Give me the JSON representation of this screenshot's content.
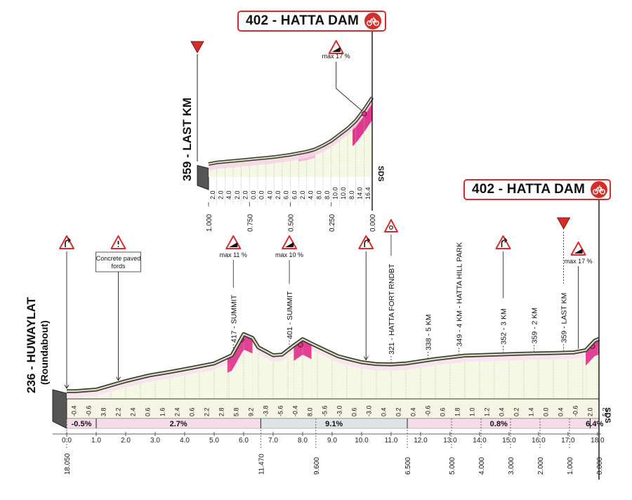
{
  "finish_label": "402 - HATTA DAM",
  "last_km_label": "359 - LAST KM",
  "start_label": "236 - HUWAYLAT",
  "start_sub_label": "(Roundabout)",
  "sds_label": "SDS",
  "colors": {
    "brand_red": "#d42e2b",
    "climb_pink": "#e0388f",
    "climb_light": "#f3b9da",
    "profile_fill": "#f6f8e6",
    "road_line": "#3a3a30",
    "gradient_bar_pink": "#f6dcea",
    "gradient_bar_grey": "#dde4e8"
  },
  "icons": [
    "roundabout-sign-icon",
    "warning-sign-icon",
    "climb-sign-icon",
    "last-km-flag-icon",
    "bicycle-icon"
  ],
  "chart_data": [
    {
      "type": "area",
      "name": "main-profile",
      "x": [
        0.0,
        0.3,
        1.0,
        2.0,
        2.8,
        3.5,
        4.3,
        5.0,
        5.6,
        6.0,
        6.3,
        6.5,
        7.0,
        7.3,
        7.7,
        8.0,
        8.3,
        8.7,
        9.2,
        9.6,
        10.0,
        10.5,
        11.0,
        11.5,
        12.5,
        13.5,
        14.5,
        15.5,
        16.5,
        17.2,
        17.6,
        17.9,
        18.05
      ],
      "y": [
        236,
        236,
        241,
        268,
        286,
        297,
        311,
        324,
        350,
        417,
        405,
        375,
        350,
        352,
        381,
        401,
        387,
        369,
        347,
        337,
        328,
        322,
        321,
        324,
        338,
        349,
        352,
        355,
        357,
        359,
        366,
        396,
        402
      ],
      "xlim": [
        0,
        18.05
      ],
      "ylim": [
        236,
        430
      ],
      "x_tick_labels": [
        "0.0",
        "1.0",
        "2.0",
        "3.0",
        "4.0",
        "5.0",
        "6.0",
        "7.0",
        "8.0",
        "9.0",
        "10.0",
        "11.0",
        "12.0",
        "13.0",
        "14.0",
        "15.0",
        "16.0",
        "17.0",
        "18.0"
      ],
      "x_tick_values": [
        0,
        1,
        2,
        3,
        4,
        5,
        6,
        7,
        8,
        9,
        10,
        11,
        12,
        13,
        14,
        15,
        16,
        17,
        18
      ],
      "km_to_go_labels": [
        {
          "x": 0.0,
          "label": "18.050"
        },
        {
          "x": 6.58,
          "label": "11.470"
        },
        {
          "x": 8.45,
          "label": "9.600"
        },
        {
          "x": 11.55,
          "label": "6.500"
        },
        {
          "x": 13.05,
          "label": "5.000"
        },
        {
          "x": 14.05,
          "label": "4.000"
        },
        {
          "x": 15.05,
          "label": "3.000"
        },
        {
          "x": 16.05,
          "label": "2.000"
        },
        {
          "x": 17.05,
          "label": "1.000"
        },
        {
          "x": 18.05,
          "label": "0.000"
        }
      ],
      "segment_gradients": [
        {
          "x": 0.0,
          "value": "-0.4"
        },
        {
          "x": 0.5,
          "value": "-0.6"
        },
        {
          "x": 1.0,
          "value": "3.8"
        },
        {
          "x": 1.5,
          "value": "2.2"
        },
        {
          "x": 2.0,
          "value": "2.4"
        },
        {
          "x": 2.5,
          "value": "0.6"
        },
        {
          "x": 3.0,
          "value": "1.6"
        },
        {
          "x": 3.5,
          "value": "2.4"
        },
        {
          "x": 4.0,
          "value": "0.6"
        },
        {
          "x": 4.5,
          "value": "2.2"
        },
        {
          "x": 5.0,
          "value": "2.8"
        },
        {
          "x": 5.5,
          "value": "5.8"
        },
        {
          "x": 6.0,
          "value": "9.2"
        },
        {
          "x": 6.5,
          "value": "-3.8"
        },
        {
          "x": 7.0,
          "value": "-5.6"
        },
        {
          "x": 7.5,
          "value": "-0.4"
        },
        {
          "x": 8.0,
          "value": "8.0"
        },
        {
          "x": 8.5,
          "value": "-5.6"
        },
        {
          "x": 9.0,
          "value": "-3.0"
        },
        {
          "x": 9.5,
          "value": "0.6"
        },
        {
          "x": 10.0,
          "value": "-3.0"
        },
        {
          "x": 10.5,
          "value": "0.4"
        },
        {
          "x": 11.0,
          "value": "0.2"
        },
        {
          "x": 11.5,
          "value": "0.4"
        },
        {
          "x": 12.0,
          "value": "-0.6"
        },
        {
          "x": 12.5,
          "value": "0.6"
        },
        {
          "x": 13.0,
          "value": "1.8"
        },
        {
          "x": 13.5,
          "value": "1.0"
        },
        {
          "x": 14.0,
          "value": "1.2"
        },
        {
          "x": 14.5,
          "value": "0.4"
        },
        {
          "x": 15.0,
          "value": "0.2"
        },
        {
          "x": 15.5,
          "value": "1.4"
        },
        {
          "x": 16.0,
          "value": "0.0"
        },
        {
          "x": 16.5,
          "value": "0.4"
        },
        {
          "x": 17.0,
          "value": "-0.6"
        },
        {
          "x": 17.5,
          "value": "2.0"
        },
        {
          "x": 18.0,
          "value": "5.2"
        }
      ],
      "average_gradients": [
        {
          "from": 0.0,
          "to": 1.0,
          "label": "-0.5%",
          "tone": "pink"
        },
        {
          "from": 1.0,
          "to": 6.58,
          "label": "2.7%",
          "tone": "pink"
        },
        {
          "from": 6.58,
          "to": 11.55,
          "label": "9.1%",
          "tone": "grey"
        },
        {
          "from": 11.55,
          "to": 17.75,
          "label": "0.8%",
          "tone": "pink"
        },
        {
          "from": 17.75,
          "to": 18.05,
          "label": "6.4%",
          "tone": "pink"
        }
      ],
      "climb_highlights": [
        {
          "from": 5.45,
          "to": 6.3,
          "summit": 6.0
        },
        {
          "from": 7.7,
          "to": 8.3,
          "summit": 8.0
        },
        {
          "from": 17.6,
          "to": 18.05,
          "summit": 17.9
        }
      ],
      "annotations": [
        {
          "x": 0.0,
          "label": "",
          "sign": "roundabout",
          "sign_row": 0
        },
        {
          "x": 1.75,
          "label": "",
          "sign": "warning",
          "sign_row": 0,
          "caption": [
            "Concrete paved",
            "fords"
          ],
          "line_to": 1.75
        },
        {
          "x": 5.65,
          "label": "417 - SUMMIT",
          "sign": "climb",
          "sign_row": 0,
          "sign_caption": "max 11 %"
        },
        {
          "x": 7.55,
          "label": "401 - SUMMIT",
          "sign": "climb",
          "sign_row": 0,
          "sign_caption": "max 10 %"
        },
        {
          "x": 10.15,
          "label": "",
          "sign": "roundabout",
          "sign_row": 0
        },
        {
          "x": 11.0,
          "label": "321 - HATTA FORT RNDBT",
          "sign": "roundabout-circle",
          "sign_row": -1
        },
        {
          "x": 12.25,
          "label": "338 - 5 KM",
          "sign": "",
          "sign_row": 0
        },
        {
          "x": 13.3,
          "label": "349 - 4 KM - HATTA HILL PARK",
          "sign": "",
          "sign_row": 0
        },
        {
          "x": 14.8,
          "label": "352 - 3 KM",
          "sign": "roundabout",
          "sign_row": 0
        },
        {
          "x": 15.85,
          "label": "359 - 2 KM",
          "sign": "",
          "sign_row": 0
        },
        {
          "x": 16.85,
          "label": "359 - LAST KM",
          "sign": "flag",
          "sign_row": -1
        },
        {
          "x": 17.35,
          "label": "",
          "sign": "climb",
          "sign_row": 1,
          "sign_caption": "max 17 %"
        }
      ]
    },
    {
      "type": "area",
      "name": "last-km-inset",
      "x": [
        1.0,
        0.95,
        0.9,
        0.8,
        0.7,
        0.6,
        0.5,
        0.4,
        0.35,
        0.3,
        0.25,
        0.2,
        0.15,
        0.1,
        0.05,
        0.0
      ],
      "y": [
        359,
        360,
        360.5,
        361.5,
        362.5,
        363.5,
        365,
        367,
        368.5,
        371,
        374,
        378,
        382,
        387,
        394,
        402
      ],
      "xlim": [
        1.0,
        0.0
      ],
      "ylim": [
        357,
        406
      ],
      "x_tick_labels": [
        "1.000",
        "0.750",
        "0.500",
        "0.250",
        "0.000"
      ],
      "x_tick_values": [
        1.0,
        0.75,
        0.5,
        0.25,
        0.0
      ],
      "segment_gradients": [
        "2.0",
        "2.0",
        "4.0",
        "2.0",
        "2.0",
        "0.0",
        "0.0",
        "4.0",
        "2.0",
        "6.0",
        "6.0",
        "2.0",
        "4.0",
        "8.0",
        "8.0",
        "10.0",
        "10.0",
        "8.0",
        "14.0",
        "16.4"
      ],
      "climb_highlights": [
        {
          "from": 0.45,
          "to": 0.35,
          "tone": "light"
        },
        {
          "from": 0.12,
          "to": 0.0,
          "tone": "strong"
        }
      ],
      "annotation": {
        "x": 0.07,
        "sign": "climb",
        "sign_caption": "max 17 %"
      }
    }
  ]
}
